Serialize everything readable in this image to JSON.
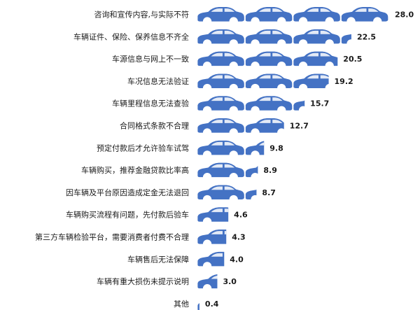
{
  "colors": {
    "car": "#4472c4",
    "window": "#ffffff",
    "wheel": "#ffffff",
    "text": "#1a1a1a"
  },
  "icon": "car-icon",
  "chart_data": {
    "type": "bar",
    "orientation": "horizontal",
    "mark": "car pictogram",
    "categories": [
      "咨询和宣传内容,与实际不符",
      "车辆证件、保险、保养信息不齐全",
      "车源信息与网上不一致",
      "车况信息无法验证",
      "车辆里程信息无法查验",
      "合同格式条款不合理",
      "预定付款后才允许验车试驾",
      "车辆购买，推荐金融贷款比率高",
      "因车辆及平台原因造成定金无法退回",
      "车辆购买流程有问题，先付款后验车",
      "第三方车辆检验平台，需要消费者付费不合理",
      "车辆售后无法保障",
      "车辆有重大损伤未提示说明",
      "其他"
    ],
    "values": [
      28.0,
      22.5,
      20.5,
      19.2,
      15.7,
      12.7,
      9.8,
      8.9,
      8.7,
      4.6,
      4.3,
      4.0,
      3.0,
      0.4
    ],
    "value_labels": [
      "28.0",
      "22.5",
      "20.5",
      "19.2",
      "15.7",
      "12.7",
      "9.8",
      "8.9",
      "8.7",
      "4.6",
      "4.3",
      "4.0",
      "3.0",
      "0.4"
    ],
    "xlim": [
      0,
      28.0
    ],
    "title": "",
    "xlabel": "",
    "ylabel": "",
    "grid": false,
    "legend": "none"
  }
}
